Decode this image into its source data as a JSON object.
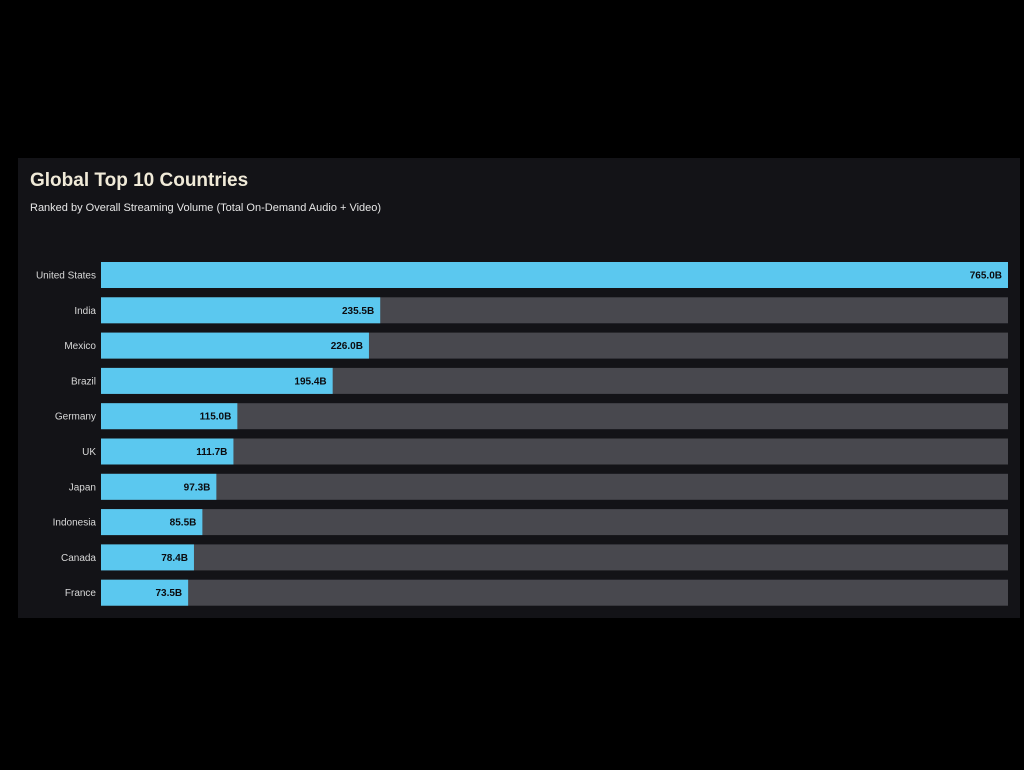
{
  "chart_data": {
    "type": "bar",
    "orientation": "horizontal",
    "title": "Global Top 10 Countries",
    "subtitle": "Ranked by Overall Streaming Volume (Total On-Demand Audio + Video)",
    "categories": [
      "United States",
      "India",
      "Mexico",
      "Brazil",
      "Germany",
      "UK",
      "Japan",
      "Indonesia",
      "Canada",
      "France"
    ],
    "values": [
      765.0,
      235.5,
      226.0,
      195.4,
      115.0,
      111.7,
      97.3,
      85.5,
      78.4,
      73.5
    ],
    "value_labels": [
      "765.0B",
      "235.5B",
      "226.0B",
      "195.4B",
      "115.0B",
      "111.7B",
      "97.3B",
      "85.5B",
      "78.4B",
      "73.5B"
    ],
    "xlim": [
      0,
      765.0
    ],
    "grid": false,
    "legend": "none",
    "colors": {
      "bar": "#5bc8ef",
      "track": "#48484e",
      "background": "#131317",
      "title": "#f0ead8"
    }
  }
}
